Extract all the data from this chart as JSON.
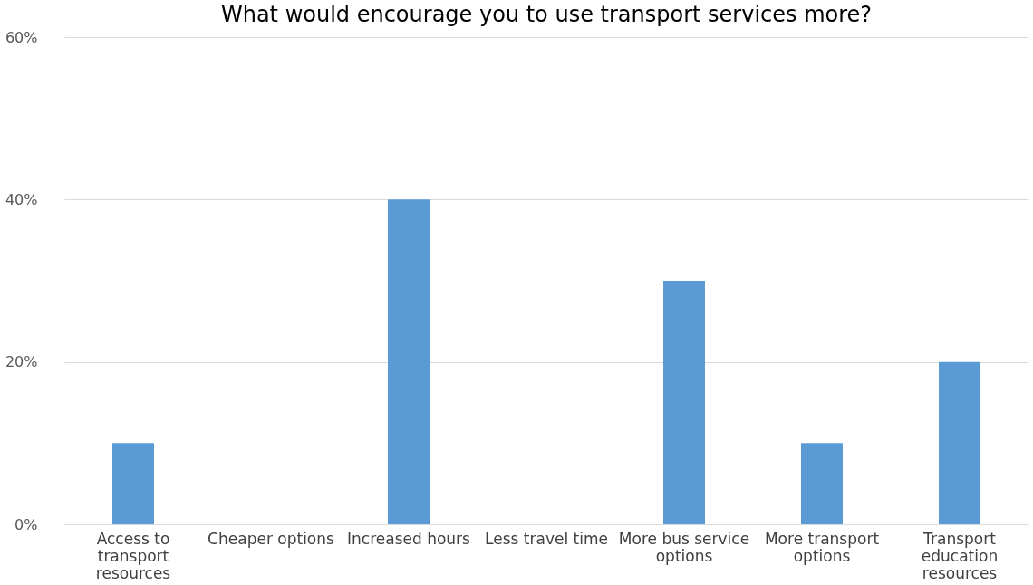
{
  "chart_data": {
    "type": "bar",
    "title": "What would encourage  you to use transport services more?",
    "categories": [
      "Access to transport resources",
      "Cheaper options",
      "Increased hours",
      "Less travel time",
      "More bus service options",
      "More transport options",
      "Transport education resources"
    ],
    "values": [
      10,
      0,
      40,
      0,
      30,
      10,
      20
    ],
    "color": "#5b9bd5",
    "ylim": [
      0,
      60
    ],
    "yticks": [
      {
        "value": 0,
        "label": "0%"
      },
      {
        "value": 20,
        "label": "20%"
      },
      {
        "value": 40,
        "label": "40%"
      },
      {
        "value": 60,
        "label": "60%"
      }
    ],
    "grid": "y"
  }
}
